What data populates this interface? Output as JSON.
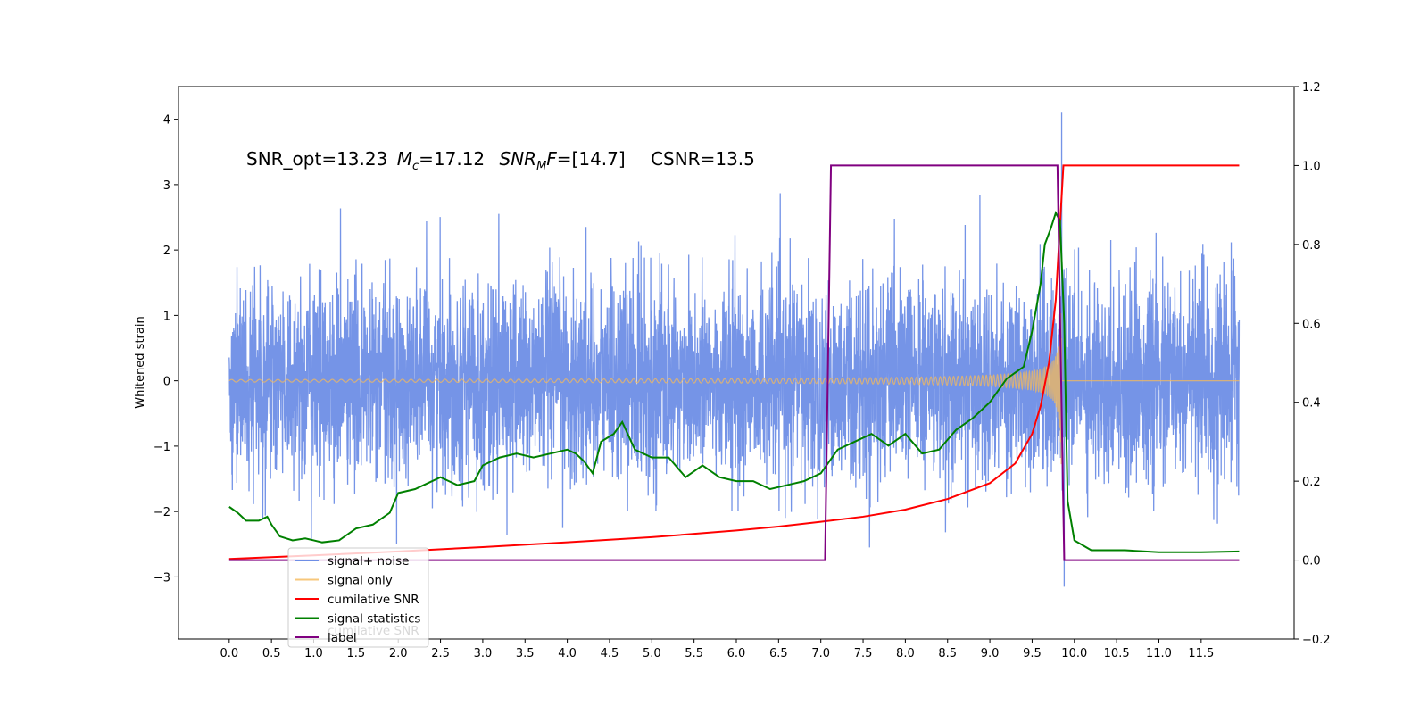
{
  "chart_data": {
    "type": "line",
    "title_parts": {
      "snr_opt": "SNR_opt=13.23",
      "mc_symbol": "M",
      "mc_sub": "c",
      "mc_value": "=17.12",
      "snr_mf_symbol": "SNR",
      "snr_mf_sub": "M",
      "snr_mf_italic_f": "F",
      "snr_mf_value": "=[14.7]",
      "csnr": "CSNR=13.5"
    },
    "ylabel": "Whitened strain",
    "xlim": [
      -0.6,
      12.6
    ],
    "ylim": [
      -3.95,
      4.5
    ],
    "ylim_right": [
      -0.2,
      1.2
    ],
    "x_ticks": [
      "0.0",
      "0.5",
      "1.0",
      "1.5",
      "2.0",
      "2.5",
      "3.0",
      "3.5",
      "4.0",
      "4.5",
      "5.0",
      "5.5",
      "6.0",
      "6.5",
      "7.0",
      "7.5",
      "8.0",
      "8.5",
      "9.0",
      "9.5",
      "10.0",
      "10.5",
      "11.0",
      "11.5"
    ],
    "y_ticks_left": [
      "−3",
      "−2",
      "−1",
      "0",
      "1",
      "2",
      "3",
      "4"
    ],
    "y_ticks_right": [
      "−0.2",
      "0.0",
      "0.2",
      "0.4",
      "0.6",
      "0.8",
      "1.0",
      "1.2"
    ],
    "series": [
      {
        "name": "signal+ noise",
        "color": "#6e8ee6",
        "axis": "left",
        "note": "white noise, amplitude ~1 sigma, spikes to 4.1 at t=9.85"
      },
      {
        "name": "signal only",
        "color": "#f5b95a",
        "axis": "left",
        "chirp": {
          "t_merger": 9.85,
          "peak_amp": 1.3
        }
      },
      {
        "name": "cumilative SNR",
        "color": "#ff0000",
        "axis": "right",
        "points": [
          [
            0.0,
            0.003
          ],
          [
            1.0,
            0.012
          ],
          [
            2.0,
            0.022
          ],
          [
            3.0,
            0.033
          ],
          [
            4.0,
            0.045
          ],
          [
            5.0,
            0.058
          ],
          [
            6.0,
            0.075
          ],
          [
            6.5,
            0.085
          ],
          [
            7.0,
            0.097
          ],
          [
            7.5,
            0.11
          ],
          [
            8.0,
            0.128
          ],
          [
            8.5,
            0.155
          ],
          [
            9.0,
            0.195
          ],
          [
            9.3,
            0.245
          ],
          [
            9.5,
            0.32
          ],
          [
            9.6,
            0.39
          ],
          [
            9.7,
            0.5
          ],
          [
            9.78,
            0.66
          ],
          [
            9.83,
            0.85
          ],
          [
            9.87,
            1.0
          ],
          [
            11.95,
            1.0
          ]
        ]
      },
      {
        "name": "signal statistics",
        "color": "#008000",
        "axis": "right",
        "points": [
          [
            0.0,
            0.135
          ],
          [
            0.1,
            0.12
          ],
          [
            0.2,
            0.1
          ],
          [
            0.35,
            0.1
          ],
          [
            0.45,
            0.11
          ],
          [
            0.5,
            0.09
          ],
          [
            0.6,
            0.06
          ],
          [
            0.75,
            0.05
          ],
          [
            0.9,
            0.055
          ],
          [
            1.0,
            0.05
          ],
          [
            1.1,
            0.045
          ],
          [
            1.3,
            0.05
          ],
          [
            1.5,
            0.08
          ],
          [
            1.7,
            0.09
          ],
          [
            1.9,
            0.12
          ],
          [
            2.0,
            0.17
          ],
          [
            2.2,
            0.18
          ],
          [
            2.3,
            0.19
          ],
          [
            2.5,
            0.21
          ],
          [
            2.7,
            0.19
          ],
          [
            2.9,
            0.2
          ],
          [
            3.0,
            0.24
          ],
          [
            3.2,
            0.26
          ],
          [
            3.4,
            0.27
          ],
          [
            3.6,
            0.26
          ],
          [
            3.8,
            0.27
          ],
          [
            4.0,
            0.28
          ],
          [
            4.1,
            0.27
          ],
          [
            4.2,
            0.25
          ],
          [
            4.3,
            0.22
          ],
          [
            4.4,
            0.3
          ],
          [
            4.55,
            0.32
          ],
          [
            4.65,
            0.35
          ],
          [
            4.8,
            0.28
          ],
          [
            5.0,
            0.26
          ],
          [
            5.2,
            0.26
          ],
          [
            5.4,
            0.21
          ],
          [
            5.6,
            0.24
          ],
          [
            5.8,
            0.21
          ],
          [
            6.0,
            0.2
          ],
          [
            6.2,
            0.2
          ],
          [
            6.4,
            0.18
          ],
          [
            6.6,
            0.19
          ],
          [
            6.8,
            0.2
          ],
          [
            7.0,
            0.22
          ],
          [
            7.2,
            0.28
          ],
          [
            7.4,
            0.3
          ],
          [
            7.6,
            0.32
          ],
          [
            7.8,
            0.29
          ],
          [
            8.0,
            0.32
          ],
          [
            8.2,
            0.27
          ],
          [
            8.4,
            0.28
          ],
          [
            8.6,
            0.33
          ],
          [
            8.8,
            0.36
          ],
          [
            9.0,
            0.4
          ],
          [
            9.2,
            0.46
          ],
          [
            9.4,
            0.49
          ],
          [
            9.5,
            0.58
          ],
          [
            9.6,
            0.7
          ],
          [
            9.65,
            0.8
          ],
          [
            9.72,
            0.84
          ],
          [
            9.78,
            0.88
          ],
          [
            9.83,
            0.86
          ],
          [
            9.88,
            0.6
          ],
          [
            9.92,
            0.15
          ],
          [
            10.0,
            0.05
          ],
          [
            10.2,
            0.025
          ],
          [
            10.6,
            0.025
          ],
          [
            11.0,
            0.02
          ],
          [
            11.5,
            0.02
          ],
          [
            11.95,
            0.022
          ]
        ]
      },
      {
        "name": "label",
        "color": "#800080",
        "axis": "right",
        "points": [
          [
            0.0,
            0.0
          ],
          [
            7.05,
            0.0
          ],
          [
            7.12,
            1.0
          ],
          [
            9.8,
            1.0
          ],
          [
            9.88,
            0.0
          ],
          [
            11.95,
            0.0
          ]
        ]
      }
    ],
    "legend": {
      "placement": "lower-left",
      "entries": [
        "signal+ noise",
        "signal only",
        "cumilative SNR",
        "signal statistics",
        "label"
      ],
      "ghost_text": "cumilative SNR"
    },
    "grid": false
  }
}
